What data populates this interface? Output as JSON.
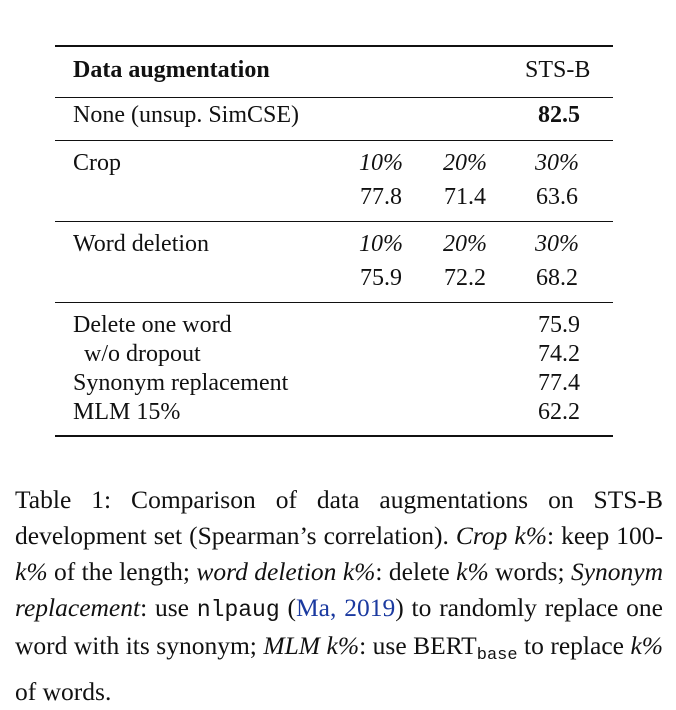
{
  "table": {
    "header": {
      "col1": "Data augmentation",
      "col2": "STS-B"
    },
    "none_row": {
      "label": "None (unsup. SimCSE)",
      "value": "82.5"
    },
    "crop": {
      "label": "Crop",
      "levels": [
        "10%",
        "20%",
        "30%"
      ],
      "values": [
        "77.8",
        "71.4",
        "63.6"
      ]
    },
    "word_deletion": {
      "label": "Word deletion",
      "levels": [
        "10%",
        "20%",
        "30%"
      ],
      "values": [
        "75.9",
        "72.2",
        "68.2"
      ]
    },
    "others": [
      {
        "label": "Delete one word",
        "value": "75.9"
      },
      {
        "label": "w/o dropout",
        "value": "74.2"
      },
      {
        "label": "Synonym replacement",
        "value": "77.4"
      },
      {
        "label": "MLM 15%",
        "value": "62.2"
      }
    ]
  },
  "caption": {
    "t1": "Table 1: Comparison of data augmentations on STS-B development set (Spearman’s correlation). ",
    "t2": "Crop k%",
    "t3": ": keep 100-",
    "t4": "k%",
    "t5": " of the length; ",
    "t6": "word deletion k%",
    "t7": ": delete ",
    "t8": "k%",
    "t9": " words; ",
    "t10": "Synonym replacement",
    "t11": ": use ",
    "t12": "nlpaug",
    "t13": " (",
    "t14": "Ma, 2019",
    "t15": ") to randomly replace one word with its synonym; ",
    "t16": "MLM k%",
    "t17": ": use BERT",
    "t18": "base",
    "t19": " to replace ",
    "t20": "k%",
    "t21": " of words."
  }
}
